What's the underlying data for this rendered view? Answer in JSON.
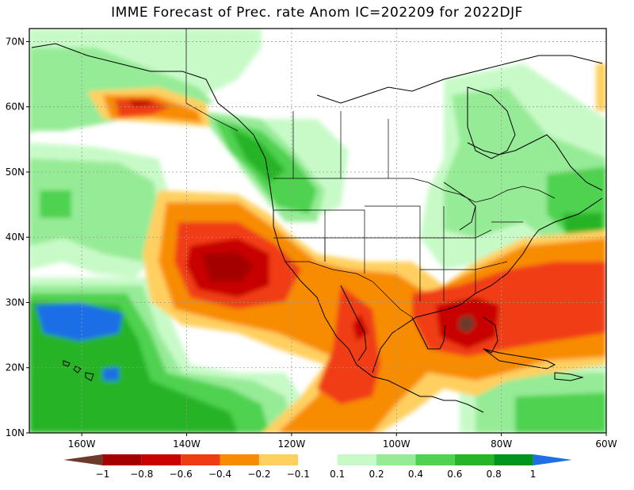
{
  "title": "IMME Forecast of Prec. rate Anom IC=202209 for 2022DJF",
  "map": {
    "lon_range": [
      -170,
      -60
    ],
    "lat_range": [
      10,
      72
    ],
    "lat_labels": [
      {
        "lat": 70,
        "text": "70N"
      },
      {
        "lat": 60,
        "text": "60N"
      },
      {
        "lat": 50,
        "text": "50N"
      },
      {
        "lat": 40,
        "text": "40N"
      },
      {
        "lat": 30,
        "text": "30N"
      },
      {
        "lat": 20,
        "text": "20N"
      },
      {
        "lat": 10,
        "text": "10N"
      }
    ],
    "lon_labels": [
      {
        "lon": -160,
        "text": "160W"
      },
      {
        "lon": -140,
        "text": "140W"
      },
      {
        "lon": -120,
        "text": "120W"
      },
      {
        "lon": -100,
        "text": "100W"
      },
      {
        "lon": -80,
        "text": "80W"
      },
      {
        "lon": -60,
        "text": "60W"
      }
    ],
    "grid": true
  },
  "colorbar": {
    "labels": [
      "−1",
      "−0.8",
      "−0.6",
      "−0.4",
      "−0.2",
      "−0.1",
      "0.1",
      "0.2",
      "0.4",
      "0.6",
      "0.8",
      "1"
    ],
    "colors": [
      "#6b3a2a",
      "#a50000",
      "#c80000",
      "#f03c14",
      "#f88c00",
      "#ffd060",
      "#ffffff",
      "#c8fac8",
      "#96eb96",
      "#50d250",
      "#28b428",
      "#00961e",
      "#1e6ee6"
    ]
  }
}
